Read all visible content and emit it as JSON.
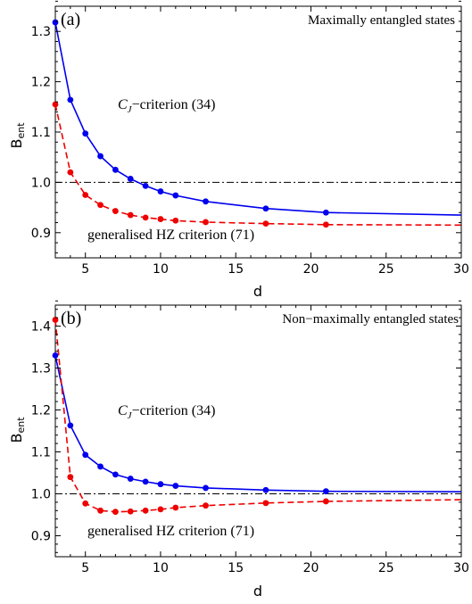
{
  "chart_data": [
    {
      "type": "line",
      "panel_label": "(a)",
      "corner_title": "Maximally entangled states",
      "xlabel": "d",
      "ylabel_main": "B",
      "ylabel_sub": "ent",
      "xlim": [
        3,
        30
      ],
      "ylim": [
        0.85,
        1.35
      ],
      "xticks": [
        5,
        10,
        15,
        20,
        25,
        30
      ],
      "yticks": [
        0.9,
        1.0,
        1.1,
        1.2,
        1.3
      ],
      "ytick_labels": [
        "0.9",
        "1.0",
        "1.1",
        "1.2",
        "1.3"
      ],
      "reference_line": 1.0,
      "series": [
        {
          "label_main": "C",
          "label_sub": "J",
          "label_rest": "−criterion (34)",
          "color": "#0000ee",
          "dashed": false,
          "line_end": [
            30,
            0.935
          ],
          "x": [
            3,
            4,
            5,
            6,
            7,
            8,
            9,
            10,
            11,
            13,
            17,
            21
          ],
          "values": [
            1.318,
            1.164,
            1.097,
            1.052,
            1.025,
            1.007,
            0.993,
            0.982,
            0.974,
            0.962,
            0.948,
            0.94
          ]
        },
        {
          "label_main": "generalised HZ criterion (71)",
          "color": "#ee0000",
          "dashed": true,
          "line_end": [
            30,
            0.915
          ],
          "x": [
            3,
            4,
            5,
            6,
            7,
            8,
            9,
            10,
            11,
            13,
            17,
            21
          ],
          "values": [
            1.155,
            1.02,
            0.975,
            0.955,
            0.943,
            0.935,
            0.93,
            0.927,
            0.924,
            0.921,
            0.918,
            0.916
          ]
        }
      ]
    },
    {
      "type": "line",
      "panel_label": "(b)",
      "corner_title": "Non−maximally entangled states",
      "xlabel": "d",
      "ylabel_main": "B",
      "ylabel_sub": "ent",
      "xlim": [
        3,
        30
      ],
      "ylim": [
        0.85,
        1.45
      ],
      "xticks": [
        5,
        10,
        15,
        20,
        25,
        30
      ],
      "yticks": [
        0.9,
        1.0,
        1.1,
        1.2,
        1.3,
        1.4
      ],
      "ytick_labels": [
        "0.9",
        "1.0",
        "1.1",
        "1.2",
        "1.3",
        "1.4"
      ],
      "reference_line": 1.0,
      "series": [
        {
          "label_main": "C",
          "label_sub": "J",
          "label_rest": "−criterion (34)",
          "color": "#0000ee",
          "dashed": false,
          "line_end": [
            30,
            1.005
          ],
          "x": [
            3,
            4,
            5,
            6,
            7,
            8,
            9,
            10,
            11,
            13,
            17,
            21
          ],
          "values": [
            1.33,
            1.163,
            1.093,
            1.065,
            1.046,
            1.036,
            1.029,
            1.023,
            1.019,
            1.014,
            1.009,
            1.006
          ]
        },
        {
          "label_main": "generalised HZ criterion (71)",
          "color": "#ee0000",
          "dashed": true,
          "line_end": [
            30,
            0.986
          ],
          "x": [
            3,
            4,
            5,
            6,
            7,
            8,
            9,
            10,
            11,
            13,
            17,
            21
          ],
          "values": [
            1.415,
            1.04,
            0.977,
            0.96,
            0.957,
            0.958,
            0.96,
            0.963,
            0.967,
            0.972,
            0.978,
            0.982
          ]
        }
      ]
    }
  ]
}
